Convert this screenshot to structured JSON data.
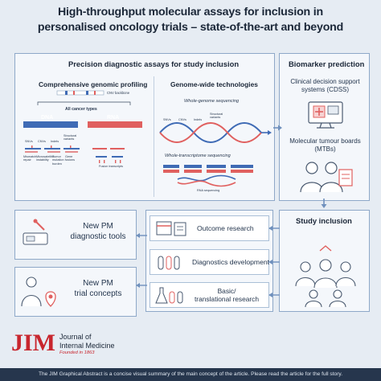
{
  "title": {
    "line1": "High-throughput molecular assays for inclusion in",
    "line2": "personalised oncology trials – state-of-the-art and beyond"
  },
  "precision_box": {
    "heading": "Precision diagnostic assays for study inclusion",
    "cgp": {
      "heading": "Comprehensive genomic profiling",
      "cnv_backbone": "CNV backbone",
      "all_cancer_types": "All cancer types",
      "dna": "DNA",
      "rna": "RNA",
      "snvs": "SNVs",
      "cnvs": "CNVs",
      "indels": "Indels",
      "structural_variants": "Structural\nvariants",
      "mismatch_repair": "Mismatch\nrepair",
      "microsatellite_instability": "Microsatellite\ninstability",
      "tumor_mutation_burden": "Tumor\nmutation\nburden",
      "gene_fusions": "Gene\nfusions",
      "fusion_transcripts": "Fusion transcripts"
    },
    "gwt": {
      "heading": "Genome-wide technologies",
      "wgs": "Whole-genome sequencing",
      "snvs": "SNVs",
      "cnvs": "CNVs",
      "indels": "Indels",
      "structural_variants": "Structural\nvariants",
      "wts": "Whole-transcriptome sequencing",
      "rna_sequencing": "RNA sequencing"
    }
  },
  "biomarker_box": {
    "heading": "Biomarker prediction",
    "cdss": "Clinical decision support\nsystems (CDSS)",
    "mtb": "Molecular tumour boards\n(MTBs)"
  },
  "study_box": {
    "heading": "Study inclusion"
  },
  "center_items": [
    {
      "label": "Outcome research"
    },
    {
      "label": "Diagnostics development"
    },
    {
      "label": "Basic/\ntranslational research"
    }
  ],
  "left_items": [
    {
      "label": "New PM\ndiagnostic tools"
    },
    {
      "label": "New PM\ntrial concepts"
    }
  ],
  "logo": {
    "text": "JIM",
    "name": "Journal of\nInternal Medicine",
    "founded": "Founded in 1863"
  },
  "footer": "The JIM Graphical Abstract is a concise visual summary of the main concept of the article. Please read the article for the full story.",
  "colors": {
    "dna": "#3f6bb5",
    "rna": "#e0605f",
    "border": "#8ea8c8",
    "arrow": "#6f90bd",
    "logo": "#c8262e"
  }
}
